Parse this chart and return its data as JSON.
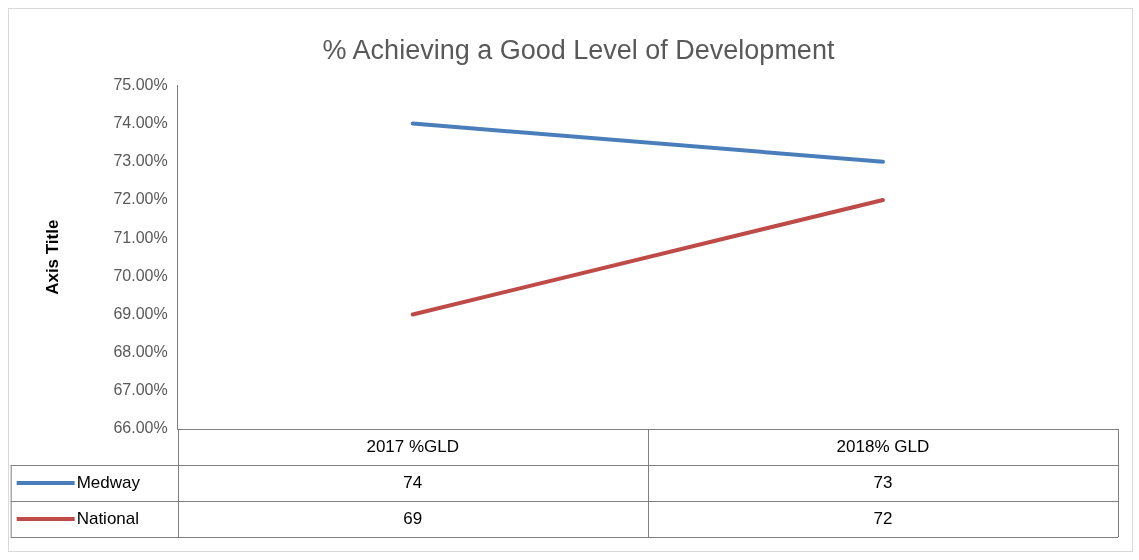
{
  "chart_data": {
    "type": "line",
    "title": "% Achieving a Good Level of Development",
    "ylabel": "Axis Title",
    "categories": [
      "2017 %GLD",
      "2018% GLD"
    ],
    "series": [
      {
        "name": "Medway",
        "color": "#4a7ebb",
        "values": [
          74,
          73
        ]
      },
      {
        "name": "National",
        "color": "#be4b48",
        "values": [
          69,
          72
        ]
      }
    ],
    "ylim": [
      66,
      75
    ],
    "yticks": [
      {
        "value": 66,
        "label": "66.00%"
      },
      {
        "value": 67,
        "label": "67.00%"
      },
      {
        "value": 68,
        "label": "68.00%"
      },
      {
        "value": 69,
        "label": "69.00%"
      },
      {
        "value": 70,
        "label": "70.00%"
      },
      {
        "value": 71,
        "label": "71.00%"
      },
      {
        "value": 72,
        "label": "72.00%"
      },
      {
        "value": 73,
        "label": "73.00%"
      },
      {
        "value": 74,
        "label": "74.00%"
      },
      {
        "value": 75,
        "label": "75.00%"
      }
    ],
    "grid": false,
    "legend": "bottom",
    "data_labels": true,
    "marker": "none",
    "line_style": "solid"
  }
}
